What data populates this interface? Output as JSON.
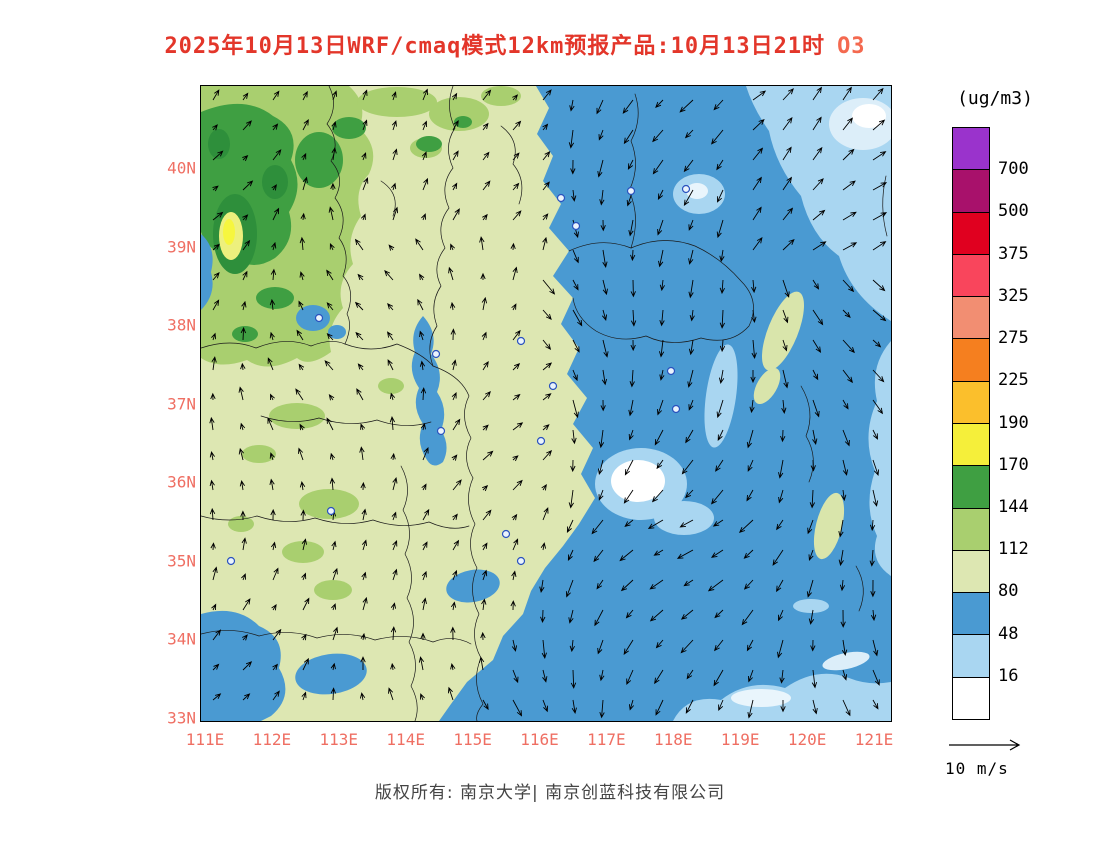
{
  "title": {
    "text": "2025年10月13日WRF/cmaq模式12km预报产品:10月13日21时",
    "species": "O3",
    "color": "#e3362a",
    "species_color": "#f4694f"
  },
  "map": {
    "lat_labels": [
      "40N",
      "39N",
      "38N",
      "37N",
      "36N",
      "35N",
      "34N",
      "33N"
    ],
    "lon_labels": [
      "111E",
      "112E",
      "113E",
      "114E",
      "115E",
      "116E",
      "117E",
      "118E",
      "119E",
      "120E",
      "121E"
    ],
    "axis_label_color": "#ef6f63"
  },
  "colorbar": {
    "unit": "(ug/m3)",
    "levels_top_to_bottom": [
      "700",
      "500",
      "375",
      "325",
      "275",
      "225",
      "190",
      "170",
      "144",
      "112",
      "80",
      "48",
      "16"
    ],
    "colors_top_to_bottom": [
      "#9a33cc",
      "#a8116b",
      "#e0001f",
      "#f9455c",
      "#f28e72",
      "#f57f1f",
      "#fbbf2c",
      "#f5ef3a",
      "#3f9f42",
      "#a9cf6f",
      "#dde7b2",
      "#4a9ad2",
      "#a9d6f1",
      "#ffffff"
    ]
  },
  "wind_legend": {
    "label": "10 m/s"
  },
  "footer": {
    "text": "版权所有: 南京大学| 南京创蓝科技有限公司"
  },
  "chart_data": {
    "type": "heatmap",
    "title": "2025年10月13日WRF/cmaq模式12km预报产品:10月13日21时 O3",
    "species": "O3",
    "unit": "ug/m3",
    "x_ticks": [
      "111E",
      "112E",
      "113E",
      "114E",
      "115E",
      "116E",
      "117E",
      "118E",
      "119E",
      "120E",
      "121E"
    ],
    "y_ticks": [
      "33N",
      "34N",
      "35N",
      "36N",
      "37N",
      "38N",
      "39N",
      "40N"
    ],
    "xlim": [
      111,
      121.3
    ],
    "ylim": [
      33,
      41
    ],
    "contour_levels": [
      16,
      48,
      80,
      112,
      144,
      170,
      190,
      225,
      275,
      325,
      375,
      500,
      700
    ],
    "level_colors_low_to_high": [
      "#ffffff",
      "#a9d6f1",
      "#4a9ad2",
      "#dde7b2",
      "#a9cf6f",
      "#3f9f42",
      "#f5ef3a",
      "#fbbf2c",
      "#f57f1f",
      "#f28e72",
      "#f9455c",
      "#e0001f",
      "#a8116b",
      "#9a33cc"
    ],
    "legend_position": "right",
    "grid": false,
    "observed_pattern": [
      {
        "region": "northwest highlands (111-113.5E, 37.5-41N)",
        "o3_range_ugm3": "112-190",
        "note": "green maximum area with small yellow core (~170-190) near 112E 39N"
      },
      {
        "region": "central-western land (112-116E)",
        "o3_range_ugm3": "80-112",
        "note": "pale olive background"
      },
      {
        "region": "eastern sea / coastal region (116-121E)",
        "o3_range_ugm3": "16-80",
        "note": "broad blue area with white (<16) patches near 117.5E 36N, 118.3E 39.5N and in the southeast"
      },
      {
        "region": "inland low-value streaks (114E 36.5-38N, southwest corner 111-113E 33-34.5N)",
        "o3_range_ugm3": "48-80",
        "note": "blue patches over land"
      }
    ],
    "wind": {
      "reference_vector": "10 m/s",
      "pattern": "northerly flow (arrows pointing south) over the eastern sea area; weak southerly/variable flow (arrows pointing north) over western land; northeastward arrows in the far northeast corner"
    }
  }
}
